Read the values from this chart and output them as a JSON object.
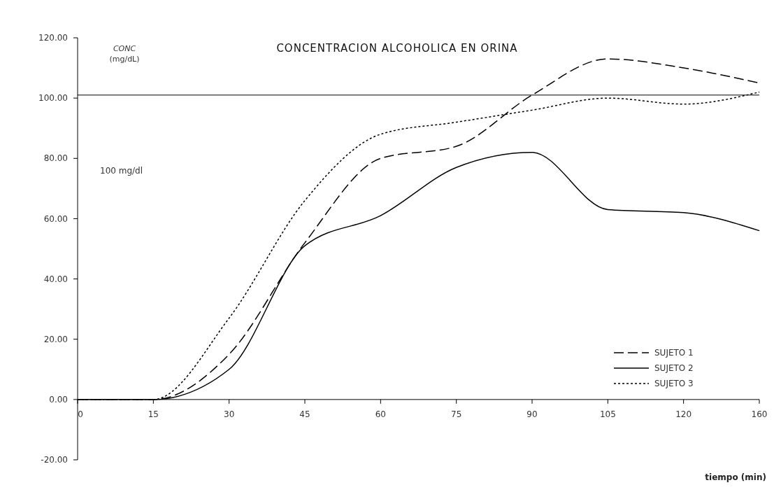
{
  "chart_data": {
    "type": "line",
    "title": "CONCENTRACION ALCOHOLICA EN ORINA",
    "ylabel": "CONC (mg/dL)",
    "xlabel": "tiempo (min)",
    "categories": [
      "0",
      "15",
      "30",
      "45",
      "60",
      "75",
      "90",
      "105",
      "120",
      "160"
    ],
    "series": [
      {
        "name": "SUJETO 1",
        "color": "#000000",
        "line_style": "dashed",
        "values": [
          0,
          0,
          15,
          52,
          80,
          84,
          101,
          113,
          110,
          105
        ]
      },
      {
        "name": "SUJETO 2",
        "color": "#000000",
        "line_style": "solid",
        "values": [
          0,
          0,
          10,
          51,
          61,
          77,
          82,
          63,
          62,
          56
        ]
      },
      {
        "name": "SUJETO 3",
        "color": "#000000",
        "line_style": "dotted",
        "values": [
          0,
          0,
          27,
          66,
          88,
          92,
          96,
          100,
          98,
          102
        ]
      }
    ],
    "ylim": [
      -20,
      120
    ],
    "yticks": [
      {
        "value": -20,
        "label": "-20.00"
      },
      {
        "value": 0,
        "label": "0.00"
      },
      {
        "value": 20,
        "label": "20.00"
      },
      {
        "value": 40,
        "label": "40.00"
      },
      {
        "value": 60,
        "label": "60.00"
      },
      {
        "value": 80,
        "label": "80.00"
      },
      {
        "value": 100,
        "label": "100.00"
      },
      {
        "value": 120,
        "label": "120.00"
      }
    ],
    "ref_lines": [
      {
        "axis": "y",
        "value": 101,
        "color": "#000000"
      }
    ],
    "annotations": [
      "100 mg/dl"
    ],
    "legend": "bottom right"
  }
}
